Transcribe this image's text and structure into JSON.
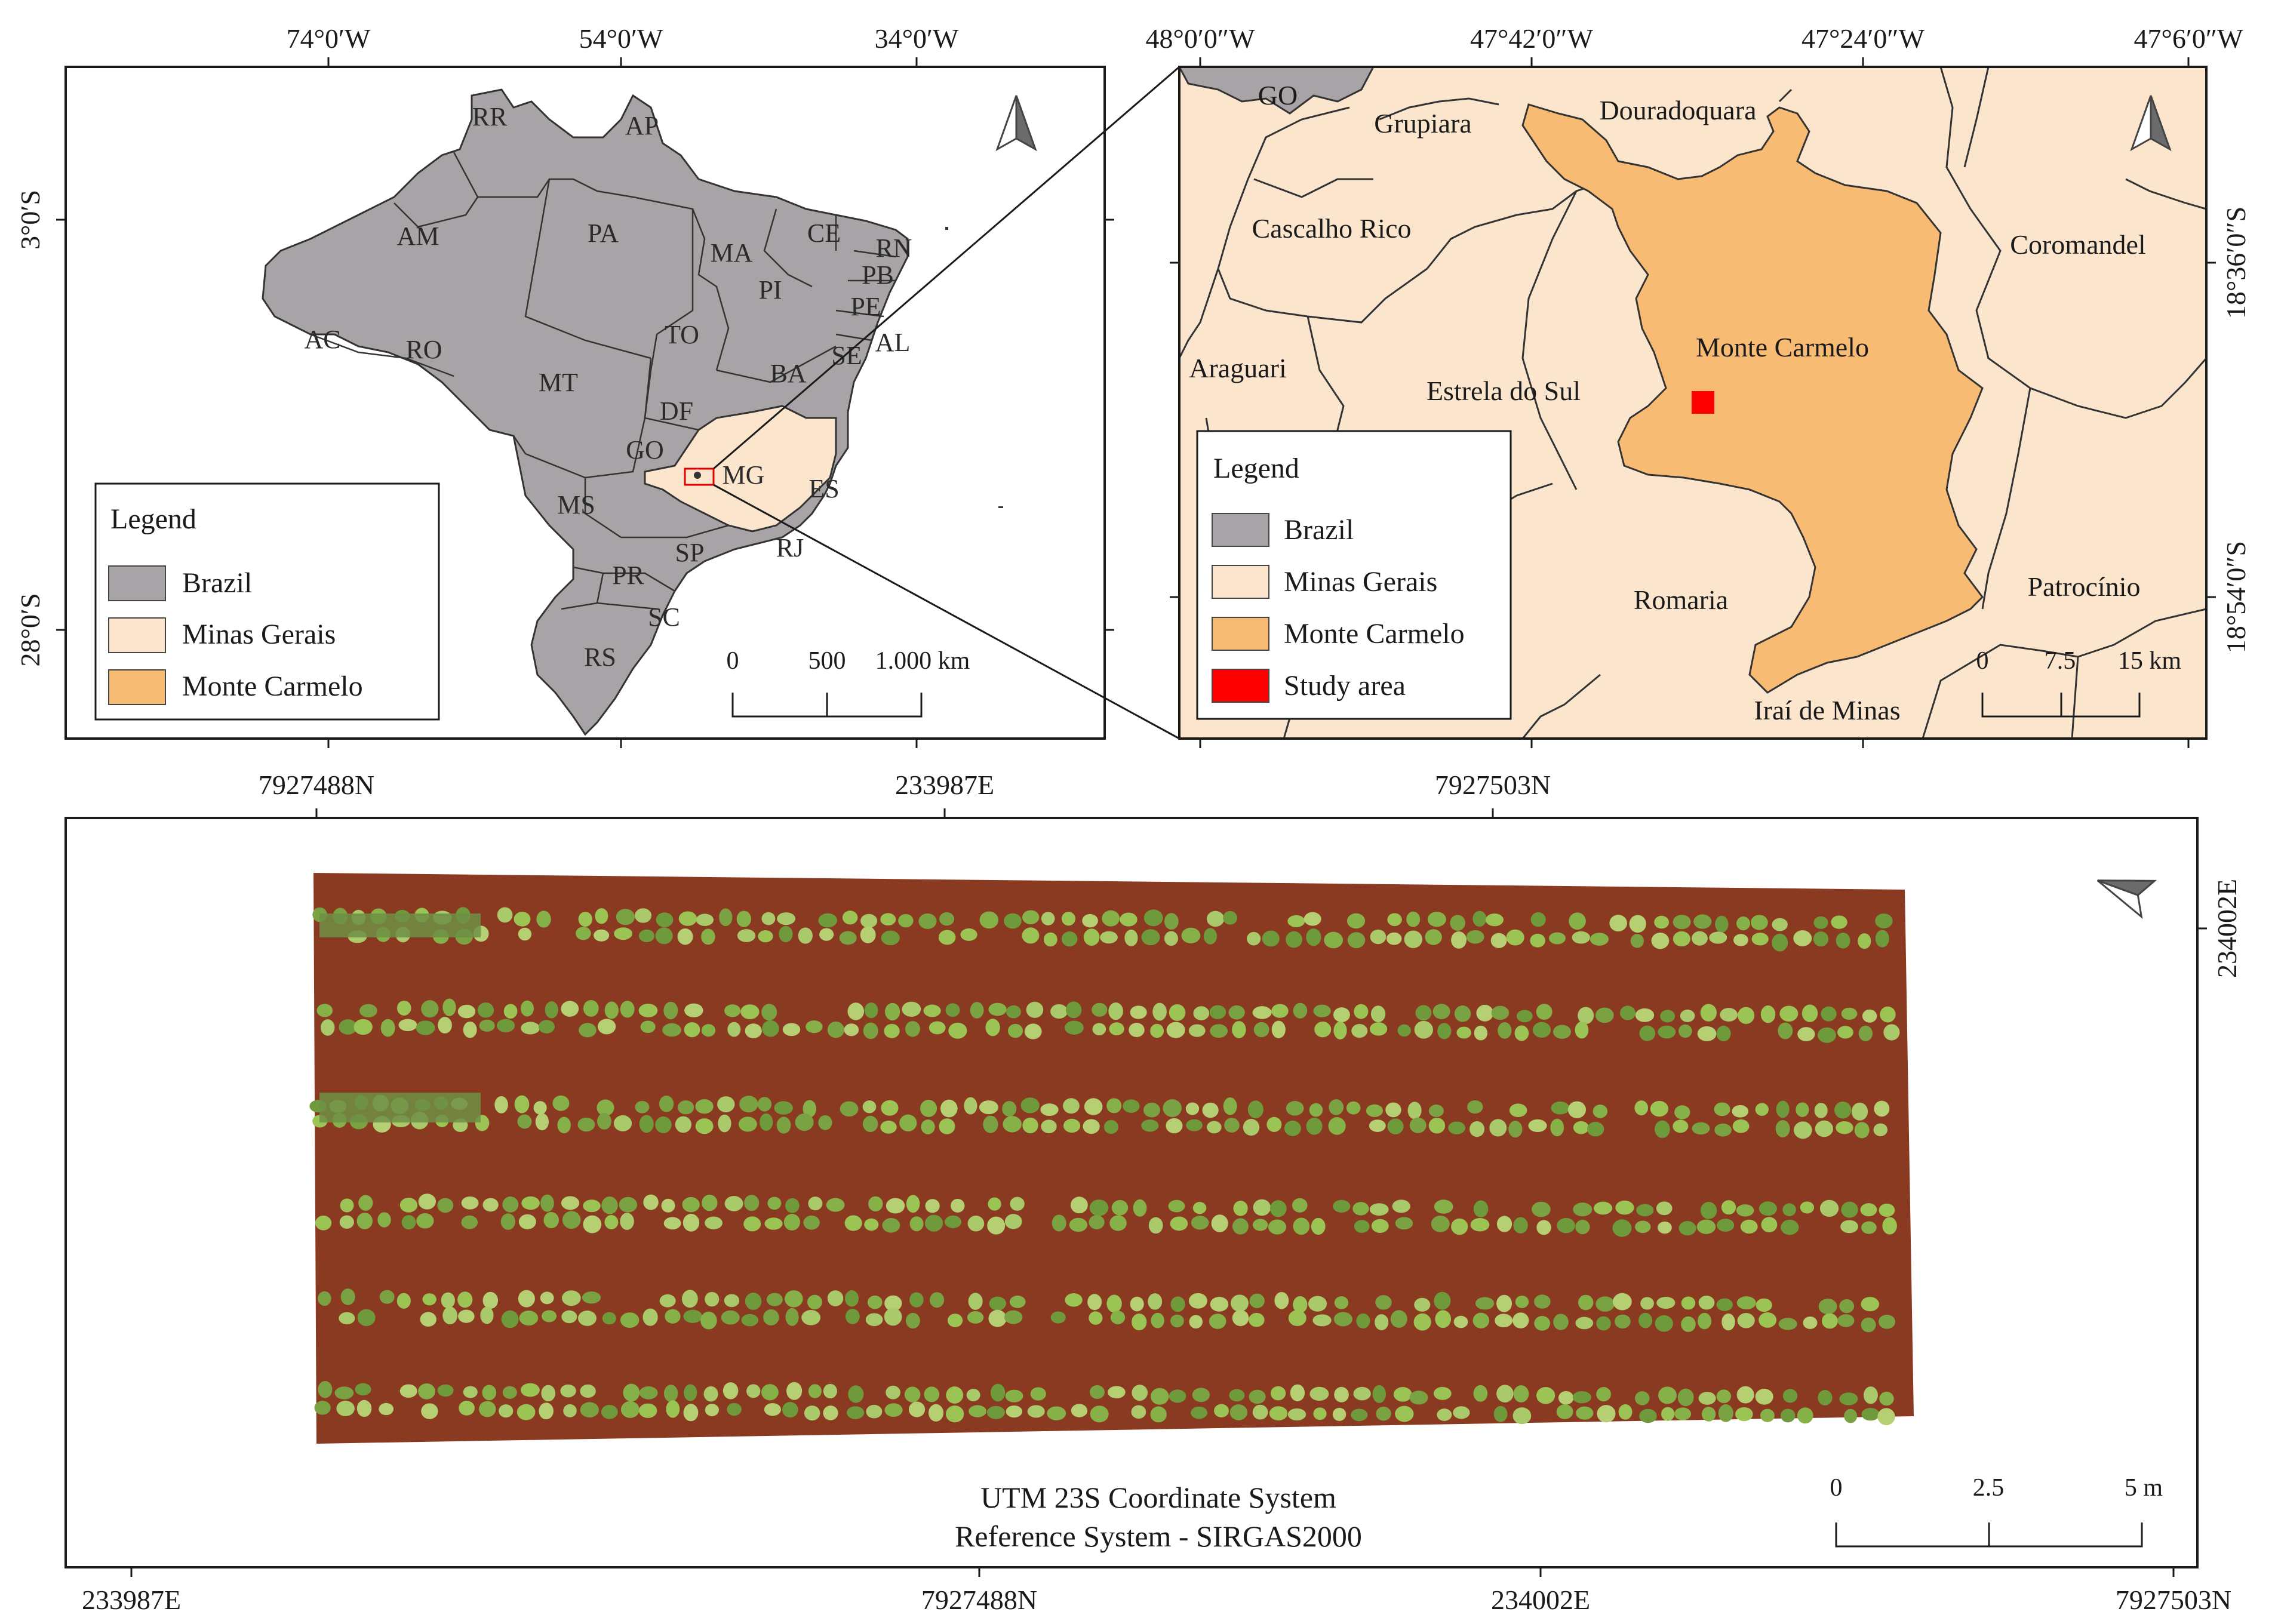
{
  "colors": {
    "brazil": "#a7a3a6",
    "minas_gerais": "#fbe6cd",
    "monte_carmelo": "#f8bb74",
    "study_area": "#ff0000",
    "soil": "#8a3a20",
    "plant": "#8fbf4a",
    "frame": "#1a1a1a"
  },
  "panel_brazil": {
    "top_ticks": [
      "74°0′W",
      "54°0′W",
      "34°0′W"
    ],
    "left_ticks": [
      "3°0′S",
      "28°0′S"
    ],
    "state_labels": [
      "RR",
      "AP",
      "AM",
      "PA",
      "MA",
      "CE",
      "RN",
      "PI",
      "PB",
      "PE",
      "AC",
      "RO",
      "TO",
      "MT",
      "AL",
      "BA",
      "SE",
      "DF",
      "GO",
      "MG",
      "ES",
      "MS",
      "SP",
      "RJ",
      "PR",
      "SC",
      "RS"
    ],
    "legend": {
      "title": "Legend",
      "items": [
        {
          "label": "Brazil",
          "swatch": "brazil"
        },
        {
          "label": "Minas Gerais",
          "swatch": "minas_gerais"
        },
        {
          "label": "Monte Carmelo",
          "swatch": "monte_carmelo"
        }
      ]
    },
    "scale": {
      "labels": [
        "0",
        "500",
        "1.000 km"
      ]
    },
    "north_arrow": "north-arrow-icon"
  },
  "panel_minas": {
    "top_ticks": [
      "48°0′0″W",
      "47°42′0″W",
      "47°24′0″W",
      "47°6′0″W"
    ],
    "right_ticks": [
      "18°36′0″S",
      "18°54′0″S"
    ],
    "municipalities": [
      "GO",
      "Grupiara",
      "Douradoquara",
      "Cascalho Rico",
      "Coromandel",
      "Monte Carmelo",
      "Araguari",
      "Estrela do Sul",
      "Romaria",
      "Patrocínio",
      "Iraí de Minas"
    ],
    "legend": {
      "title": "Legend",
      "items": [
        {
          "label": "Brazil",
          "swatch": "brazil"
        },
        {
          "label": "Minas Gerais",
          "swatch": "minas_gerais"
        },
        {
          "label": "Monte Carmelo",
          "swatch": "monte_carmelo"
        },
        {
          "label": "Study area",
          "swatch": "study_area"
        }
      ]
    },
    "scale": {
      "labels": [
        "0",
        "7.5",
        "15 km"
      ]
    },
    "north_arrow": "north-arrow-icon"
  },
  "panel_field": {
    "top_ticks": [
      "7927488N",
      "233987E",
      "7927503N"
    ],
    "right_ticks": [
      "234002E"
    ],
    "bottom_ticks": [
      "233987E",
      "7927488N",
      "234002E",
      "7927503N"
    ],
    "footer_lines": [
      "UTM 23S Coordinate System",
      "Reference System - SIRGAS2000"
    ],
    "scale": {
      "labels": [
        "0",
        "2.5",
        "5 m"
      ]
    },
    "north_arrow": "north-arrow-icon",
    "plant_rows": 6
  }
}
